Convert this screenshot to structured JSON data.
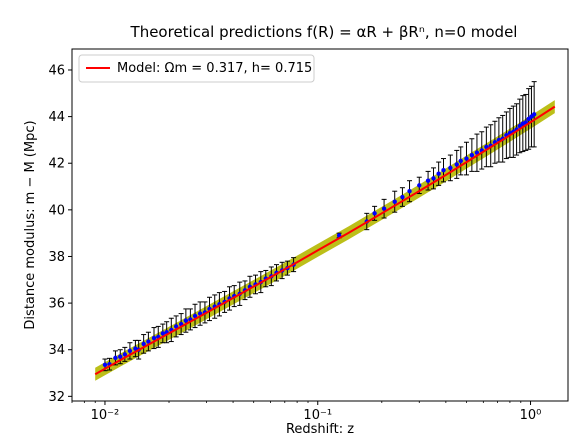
{
  "chart_data": {
    "type": "scatter",
    "title": "Theoretical predictions f(R) = αR + βRⁿ, n=0 model",
    "xlabel": "Redshift: z",
    "ylabel": "Distance modulus: m − M (Mpc)",
    "xscale": "log",
    "xlim": [
      0.007,
      1.5
    ],
    "ylim": [
      31.8,
      46.9
    ],
    "x_tick_labels": [
      "10⁻²",
      "10⁻¹",
      "10⁰"
    ],
    "y_ticks": [
      32,
      34,
      36,
      38,
      40,
      42,
      44,
      46
    ],
    "legend": {
      "placement": "top-left",
      "entries": [
        {
          "label": "Model: Ωm = 0.317, h= 0.715",
          "color": "#ff0000"
        }
      ]
    },
    "model_curve": {
      "name": "Model: Ωm = 0.317, h= 0.715",
      "color": "#ff0000",
      "band_color": "#b5b800",
      "x": [
        0.009,
        0.012,
        0.016,
        0.022,
        0.03,
        0.04,
        0.055,
        0.075,
        0.1,
        0.14,
        0.2,
        0.28,
        0.38,
        0.5,
        0.65,
        0.85,
        1.05,
        1.3
      ],
      "y": [
        32.95,
        33.59,
        34.22,
        34.91,
        35.59,
        36.22,
        36.92,
        37.61,
        38.26,
        39.02,
        39.85,
        40.64,
        41.37,
        42.05,
        42.69,
        43.35,
        43.88,
        44.43
      ]
    },
    "series": [
      {
        "name": "",
        "color": "#0000ff",
        "errorbar_color": "#000000",
        "x": [
          0.01,
          0.0105,
          0.0112,
          0.0118,
          0.0124,
          0.0131,
          0.0139,
          0.0144,
          0.0152,
          0.016,
          0.017,
          0.0178,
          0.0187,
          0.0195,
          0.0205,
          0.0216,
          0.0228,
          0.024,
          0.0252,
          0.0265,
          0.028,
          0.0295,
          0.031,
          0.0328,
          0.0345,
          0.0365,
          0.0385,
          0.0405,
          0.043,
          0.0455,
          0.048,
          0.051,
          0.054,
          0.057,
          0.0605,
          0.064,
          0.068,
          0.072,
          0.077,
          0.126,
          0.17,
          0.185,
          0.205,
          0.23,
          0.25,
          0.27,
          0.3,
          0.33,
          0.35,
          0.37,
          0.39,
          0.42,
          0.45,
          0.47,
          0.5,
          0.53,
          0.56,
          0.59,
          0.62,
          0.65,
          0.68,
          0.71,
          0.74,
          0.77,
          0.8,
          0.83,
          0.86,
          0.89,
          0.92,
          0.95,
          0.98,
          1.01,
          1.04
        ],
        "y": [
          33.35,
          33.38,
          33.65,
          33.7,
          33.8,
          33.95,
          34.05,
          34.0,
          34.25,
          34.35,
          34.5,
          34.55,
          34.7,
          34.75,
          34.85,
          35.0,
          35.1,
          35.25,
          35.3,
          35.45,
          35.55,
          35.6,
          35.75,
          35.85,
          35.95,
          36.05,
          36.2,
          36.3,
          36.4,
          36.55,
          36.7,
          36.8,
          36.9,
          37.05,
          37.15,
          37.3,
          37.4,
          37.5,
          37.65,
          38.9,
          39.5,
          39.85,
          40.05,
          40.35,
          40.55,
          40.8,
          41.05,
          41.25,
          41.35,
          41.55,
          41.7,
          41.8,
          41.95,
          42.1,
          42.2,
          42.35,
          42.45,
          42.55,
          42.7,
          42.75,
          42.9,
          43.0,
          43.05,
          43.2,
          43.3,
          43.35,
          43.45,
          43.6,
          43.7,
          43.75,
          43.9,
          44.0,
          44.1
        ],
        "yerr": [
          0.25,
          0.25,
          0.3,
          0.3,
          0.3,
          0.35,
          0.35,
          0.4,
          0.4,
          0.4,
          0.45,
          0.45,
          0.4,
          0.45,
          0.5,
          0.45,
          0.45,
          0.5,
          0.45,
          0.5,
          0.5,
          0.45,
          0.5,
          0.5,
          0.5,
          0.45,
          0.5,
          0.45,
          0.5,
          0.4,
          0.45,
          0.4,
          0.45,
          0.35,
          0.4,
          0.35,
          0.35,
          0.3,
          0.3,
          0.1,
          0.35,
          0.3,
          0.4,
          0.45,
          0.4,
          0.45,
          0.35,
          0.4,
          0.45,
          0.5,
          0.5,
          0.55,
          0.6,
          0.6,
          0.7,
          0.7,
          0.8,
          0.8,
          0.85,
          0.9,
          0.9,
          0.95,
          1.0,
          1.0,
          1.05,
          1.1,
          1.1,
          1.15,
          1.2,
          1.2,
          1.3,
          1.3,
          1.4
        ]
      }
    ]
  }
}
